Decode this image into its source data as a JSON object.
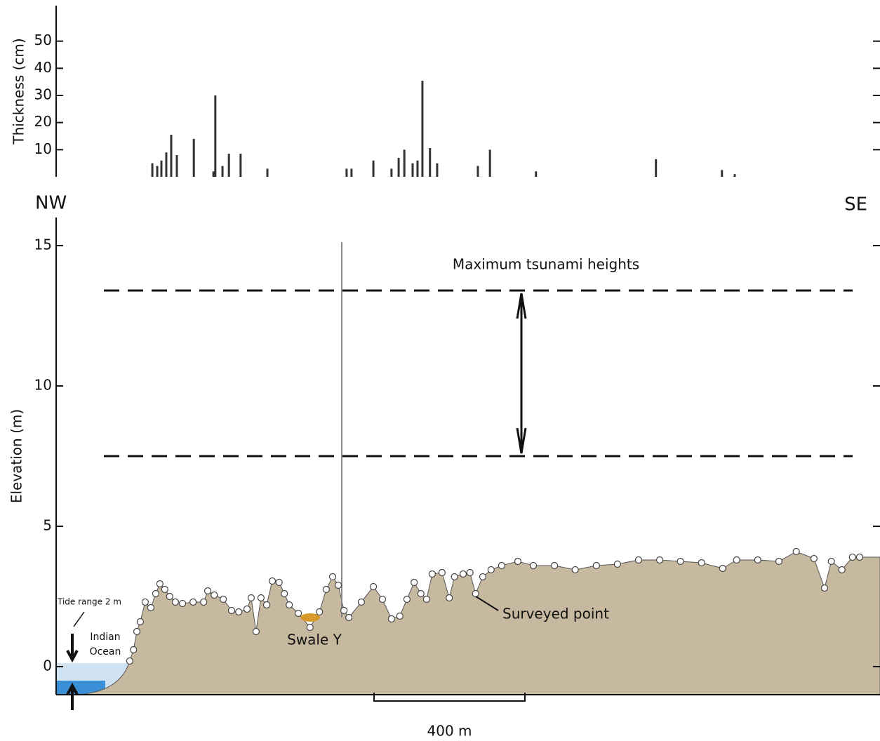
{
  "chart_data": [
    {
      "type": "bar",
      "ylabel": "Thickness (cm)",
      "color": "#333333",
      "x": [
        255,
        268,
        279,
        292,
        305,
        320,
        365,
        417,
        422,
        441,
        458,
        489,
        560,
        770,
        783,
        841,
        889,
        908,
        923,
        945,
        958,
        971,
        991,
        1010,
        1118,
        1150,
        1272,
        1590,
        1765,
        1799
      ],
      "values": [
        5,
        4,
        6,
        9,
        15.5,
        8,
        14,
        2,
        30,
        4,
        8.5,
        8.5,
        3,
        3,
        3,
        6,
        3,
        7,
        10,
        5,
        6,
        35.4,
        10.6,
        5,
        4,
        10,
        2,
        6.5,
        2.5,
        1
      ],
      "xlim": [
        0,
        2184
      ],
      "ylim": [
        0,
        60
      ],
      "yticks": [
        10,
        20,
        30,
        40,
        50
      ]
    },
    {
      "type": "area",
      "ylabel": "Elevation (m)",
      "color": "#c7b9a0",
      "marker_color": "#ffffff",
      "x": [
        195,
        205,
        214,
        223,
        236,
        251,
        264,
        275,
        288,
        301,
        316,
        335,
        363,
        391,
        402,
        419,
        443,
        465,
        484,
        506,
        517,
        530,
        543,
        558,
        573,
        591,
        605,
        618,
        642,
        673,
        698,
        716,
        733,
        748,
        763,
        776,
        809,
        841,
        865,
        889,
        911,
        930,
        949,
        967,
        982,
        997,
        1023,
        1042,
        1056,
        1079,
        1097,
        1112,
        1131,
        1153,
        1181,
        1224,
        1265,
        1321,
        1376,
        1432,
        1488,
        1544,
        1600,
        1655,
        1711,
        1767,
        1804,
        1860,
        1916,
        1962,
        2009,
        2037,
        2055,
        2083,
        2111,
        2130
      ],
      "values": [
        0.2,
        0.6,
        1.25,
        1.6,
        2.3,
        2.1,
        2.6,
        2.95,
        2.75,
        2.5,
        2.3,
        2.25,
        2.3,
        2.3,
        2.7,
        2.55,
        2.4,
        2.0,
        1.95,
        2.05,
        2.45,
        1.25,
        2.45,
        2.2,
        3.05,
        3.0,
        2.6,
        2.2,
        1.9,
        1.4,
        1.95,
        2.75,
        3.2,
        2.9,
        2.0,
        1.75,
        2.3,
        2.85,
        2.4,
        1.7,
        1.8,
        2.4,
        3.0,
        2.6,
        2.4,
        3.3,
        3.35,
        2.45,
        3.2,
        3.3,
        3.35,
        2.6,
        3.2,
        3.45,
        3.6,
        3.75,
        3.6,
        3.6,
        3.45,
        3.6,
        3.65,
        3.8,
        3.8,
        3.75,
        3.7,
        3.5,
        3.8,
        3.8,
        3.75,
        4.1,
        3.85,
        2.8,
        3.75,
        3.45,
        3.9,
        3.9
      ],
      "xlim": [
        0,
        2184
      ],
      "ylim": [
        -1,
        16
      ],
      "yticks": [
        0,
        5,
        10,
        15
      ],
      "tsunami_heights": [
        7.5,
        13.4
      ],
      "scale_bar": {
        "length": 400,
        "label": "400 m"
      },
      "start_label": "NW",
      "end_label": "SE",
      "annotations": [
        "Maximum tsunami heights",
        "Swale Y",
        "Surveyed point",
        "Tide range 2 m",
        "Indian",
        "Ocean"
      ]
    }
  ]
}
